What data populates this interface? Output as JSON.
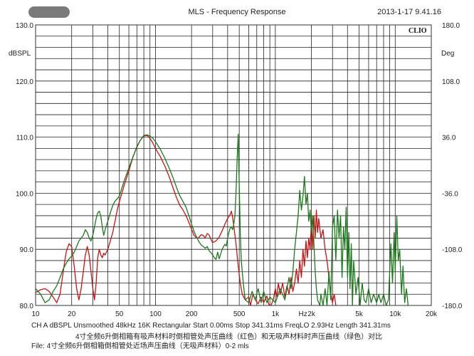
{
  "window": {
    "title": "MLS - Frequency Response",
    "timestamp": "2013-1-17 9.41.16"
  },
  "chart_data": {
    "type": "line",
    "brand": "CLIO",
    "y_unit_left": "dBSPL",
    "y_unit_right": "Deg",
    "x_scale": "log",
    "xlim": [
      10,
      20000
    ],
    "ylim": [
      80,
      130
    ],
    "ylim_right": [
      -180,
      180
    ],
    "grid": true,
    "x_ticks": [
      {
        "v": 10,
        "label": "10"
      },
      {
        "v": 20,
        "label": "20"
      },
      {
        "v": 50,
        "label": "50"
      },
      {
        "v": 100,
        "label": "100"
      },
      {
        "v": 200,
        "label": "200"
      },
      {
        "v": 500,
        "label": "500"
      },
      {
        "v": 1000,
        "label": "1k"
      },
      {
        "v": 1700,
        "label": "Hz"
      },
      {
        "v": 2000,
        "label": "2k"
      },
      {
        "v": 5000,
        "label": "5k"
      },
      {
        "v": 10000,
        "label": "10k"
      },
      {
        "v": 20000,
        "label": "20k"
      }
    ],
    "x_gridlines": [
      10,
      20,
      30,
      40,
      50,
      60,
      70,
      80,
      90,
      100,
      200,
      300,
      400,
      500,
      600,
      700,
      800,
      900,
      1000,
      2000,
      3000,
      4000,
      5000,
      6000,
      7000,
      8000,
      9000,
      10000,
      20000
    ],
    "y_ticks_left": [
      "130.0",
      "120.0",
      "110.0",
      "100.0",
      "90.0",
      "80.0"
    ],
    "y_ticks_left_values": [
      130,
      120,
      110,
      100,
      90,
      80
    ],
    "y_ticks_right": [
      "180.0",
      "108.0",
      "36.0",
      "-36.0",
      "-108.0",
      "-180.0"
    ],
    "y_ticks_right_values": [
      180,
      108,
      36,
      -36,
      -108,
      -180
    ],
    "series": [
      {
        "color": "#cc1111",
        "points": [
          [
            10,
            82.3
          ],
          [
            11,
            82.8
          ],
          [
            12,
            83
          ],
          [
            13,
            82.5
          ],
          [
            14,
            81.5
          ],
          [
            15,
            80.5
          ],
          [
            16,
            82
          ],
          [
            17,
            86
          ],
          [
            18,
            89.5
          ],
          [
            19,
            91
          ],
          [
            20,
            90.5
          ],
          [
            21,
            87
          ],
          [
            22,
            83
          ],
          [
            23,
            81
          ],
          [
            24,
            83
          ],
          [
            25,
            86
          ],
          [
            26,
            89
          ],
          [
            27,
            90.5
          ],
          [
            28,
            89
          ],
          [
            29,
            86
          ],
          [
            30,
            83
          ],
          [
            31,
            81
          ],
          [
            32,
            84
          ],
          [
            33,
            88.5
          ],
          [
            34,
            90
          ],
          [
            35,
            89
          ],
          [
            36,
            88.5
          ],
          [
            37,
            89.3
          ],
          [
            38,
            89
          ],
          [
            40,
            90
          ],
          [
            42,
            91.5
          ],
          [
            44,
            93
          ],
          [
            46,
            95
          ],
          [
            48,
            97
          ],
          [
            50,
            98.5
          ],
          [
            55,
            101.5
          ],
          [
            60,
            104
          ],
          [
            65,
            106.5
          ],
          [
            70,
            108.3
          ],
          [
            75,
            109.5
          ],
          [
            80,
            110.2
          ],
          [
            85,
            110.3
          ],
          [
            90,
            109.8
          ],
          [
            95,
            109
          ],
          [
            100,
            108
          ],
          [
            110,
            106.5
          ],
          [
            120,
            104.8
          ],
          [
            130,
            103
          ],
          [
            140,
            101
          ],
          [
            150,
            99.2
          ],
          [
            160,
            97.8
          ],
          [
            170,
            97
          ],
          [
            180,
            96
          ],
          [
            190,
            94.8
          ],
          [
            200,
            93.6
          ],
          [
            210,
            92.5
          ],
          [
            220,
            92
          ],
          [
            230,
            92.1
          ],
          [
            240,
            92.6
          ],
          [
            250,
            92.5
          ],
          [
            260,
            92
          ],
          [
            270,
            92.8
          ],
          [
            280,
            92.6
          ],
          [
            290,
            91.8
          ],
          [
            300,
            91.2
          ],
          [
            320,
            91.5
          ],
          [
            340,
            92.2
          ],
          [
            360,
            93.3
          ],
          [
            380,
            94.5
          ],
          [
            400,
            95.5
          ],
          [
            420,
            96.2
          ],
          [
            430,
            96.8
          ],
          [
            440,
            95.8
          ],
          [
            450,
            94.2
          ],
          [
            470,
            91
          ],
          [
            490,
            87
          ],
          [
            510,
            84
          ],
          [
            530,
            82
          ],
          [
            560,
            81
          ],
          [
            600,
            81.5
          ],
          [
            620,
            80
          ],
          [
            650,
            82
          ],
          [
            680,
            81
          ],
          [
            720,
            80.3
          ],
          [
            760,
            81.5
          ],
          [
            800,
            80.5
          ],
          [
            850,
            81.7
          ],
          [
            880,
            80.2
          ],
          [
            920,
            80
          ],
          [
            960,
            81
          ],
          [
            1000,
            83
          ],
          [
            1030,
            81.5
          ],
          [
            1060,
            84
          ],
          [
            1100,
            82
          ],
          [
            1150,
            84
          ],
          [
            1200,
            81.5
          ],
          [
            1250,
            83.5
          ],
          [
            1300,
            82
          ],
          [
            1350,
            85
          ],
          [
            1400,
            82.5
          ],
          [
            1450,
            84
          ],
          [
            1500,
            86.5
          ],
          [
            1550,
            84
          ],
          [
            1600,
            88
          ],
          [
            1650,
            85
          ],
          [
            1700,
            90
          ],
          [
            1750,
            87
          ],
          [
            1800,
            91.5
          ],
          [
            1850,
            88.5
          ],
          [
            1900,
            92
          ],
          [
            1950,
            90
          ],
          [
            2000,
            95
          ],
          [
            2050,
            90
          ],
          [
            2100,
            96
          ],
          [
            2150,
            92
          ],
          [
            2200,
            97
          ],
          [
            2250,
            93
          ],
          [
            2300,
            95.5
          ],
          [
            2400,
            92
          ],
          [
            2500,
            93.5
          ],
          [
            2600,
            90
          ],
          [
            2700,
            88
          ],
          [
            2800,
            85
          ],
          [
            2900,
            82
          ],
          [
            3000,
            80.5
          ],
          [
            3100,
            82
          ],
          [
            3200,
            80
          ]
        ]
      },
      {
        "color": "#1a7a1a",
        "points": [
          [
            10,
            83
          ],
          [
            11,
            82
          ],
          [
            12,
            80.5
          ],
          [
            13,
            81
          ],
          [
            14,
            82.5
          ],
          [
            15,
            83.5
          ],
          [
            16,
            85
          ],
          [
            17,
            86.5
          ],
          [
            18,
            87.5
          ],
          [
            19,
            88.3
          ],
          [
            20,
            88.8
          ],
          [
            21,
            89.5
          ],
          [
            22,
            90.5
          ],
          [
            23,
            91.5
          ],
          [
            24,
            92
          ],
          [
            25,
            92.5
          ],
          [
            26,
            93.5
          ],
          [
            27,
            93
          ],
          [
            28,
            92
          ],
          [
            29,
            91.5
          ],
          [
            30,
            92.5
          ],
          [
            31,
            94
          ],
          [
            32,
            95.5
          ],
          [
            33,
            96.5
          ],
          [
            34,
            96.8
          ],
          [
            35,
            96
          ],
          [
            36,
            94
          ],
          [
            37,
            92.5
          ],
          [
            38,
            93.5
          ],
          [
            40,
            95
          ],
          [
            42,
            96.5
          ],
          [
            44,
            97.8
          ],
          [
            46,
            98.6
          ],
          [
            48,
            99
          ],
          [
            50,
            99.5
          ],
          [
            55,
            102.3
          ],
          [
            60,
            104.5
          ],
          [
            65,
            106.5
          ],
          [
            70,
            108.2
          ],
          [
            75,
            109.5
          ],
          [
            80,
            110.3
          ],
          [
            85,
            110.4
          ],
          [
            90,
            110.2
          ],
          [
            95,
            109.8
          ],
          [
            100,
            109.2
          ],
          [
            110,
            107.8
          ],
          [
            120,
            106.2
          ],
          [
            130,
            104.5
          ],
          [
            140,
            102.8
          ],
          [
            150,
            101
          ],
          [
            160,
            99.5
          ],
          [
            170,
            98.5
          ],
          [
            180,
            97.5
          ],
          [
            190,
            96
          ],
          [
            200,
            94.5
          ],
          [
            210,
            93.2
          ],
          [
            220,
            92.2
          ],
          [
            230,
            91.4
          ],
          [
            240,
            90.8
          ],
          [
            250,
            90.5
          ],
          [
            260,
            90.2
          ],
          [
            270,
            90.5
          ],
          [
            280,
            89.8
          ],
          [
            290,
            89.4
          ],
          [
            300,
            89
          ],
          [
            310,
            88.5
          ],
          [
            320,
            88.2
          ],
          [
            330,
            89.5
          ],
          [
            340,
            88.3
          ],
          [
            350,
            89.2
          ],
          [
            360,
            90
          ],
          [
            370,
            90.5
          ],
          [
            380,
            90.9
          ],
          [
            390,
            90.6
          ],
          [
            400,
            92
          ],
          [
            410,
            93
          ],
          [
            420,
            93.8
          ],
          [
            430,
            94
          ],
          [
            440,
            93.5
          ],
          [
            450,
            94.5
          ],
          [
            460,
            96
          ],
          [
            470,
            100
          ],
          [
            480,
            106
          ],
          [
            490,
            110.5
          ],
          [
            500,
            101
          ],
          [
            510,
            93
          ],
          [
            520,
            88
          ],
          [
            540,
            84
          ],
          [
            560,
            81
          ],
          [
            600,
            80.5
          ],
          [
            640,
            82.5
          ],
          [
            680,
            81
          ],
          [
            720,
            83
          ],
          [
            760,
            80.5
          ],
          [
            800,
            82.5
          ],
          [
            850,
            80.5
          ],
          [
            900,
            81.5
          ],
          [
            1000,
            80.5
          ],
          [
            1100,
            83
          ],
          [
            1200,
            81
          ],
          [
            1300,
            85
          ],
          [
            1350,
            83
          ],
          [
            1400,
            86
          ],
          [
            1450,
            90
          ],
          [
            1500,
            93
          ],
          [
            1550,
            96
          ],
          [
            1600,
            100.5
          ],
          [
            1650,
            97
          ],
          [
            1700,
            99.5
          ],
          [
            1750,
            103
          ],
          [
            1800,
            98
          ],
          [
            1850,
            100
          ],
          [
            1900,
            95
          ],
          [
            1950,
            97
          ],
          [
            2000,
            93
          ],
          [
            2050,
            96
          ],
          [
            2100,
            91
          ],
          [
            2150,
            86
          ],
          [
            2200,
            83
          ],
          [
            2250,
            81
          ],
          [
            2300,
            80.5
          ],
          [
            2350,
            80
          ],
          [
            2400,
            82
          ],
          [
            2500,
            80
          ],
          [
            2600,
            83
          ],
          [
            2700,
            80
          ],
          [
            2800,
            86
          ],
          [
            2900,
            81
          ],
          [
            3000,
            94
          ],
          [
            3100,
            96
          ],
          [
            3200,
            88
          ],
          [
            3300,
            97
          ],
          [
            3400,
            92
          ],
          [
            3500,
            96
          ],
          [
            3600,
            85
          ],
          [
            3700,
            94
          ],
          [
            3800,
            90
          ],
          [
            3900,
            97.5
          ],
          [
            4000,
            85
          ],
          [
            4100,
            93
          ],
          [
            4200,
            83
          ],
          [
            4300,
            91
          ],
          [
            4400,
            80
          ],
          [
            4500,
            88
          ],
          [
            4700,
            82
          ],
          [
            4900,
            85
          ],
          [
            5100,
            80
          ],
          [
            5300,
            84
          ],
          [
            5500,
            81
          ],
          [
            5700,
            80.5
          ],
          [
            6000,
            83
          ],
          [
            6300,
            80.5
          ],
          [
            6600,
            82
          ],
          [
            7000,
            80.5
          ],
          [
            7300,
            82
          ],
          [
            7600,
            80.5
          ],
          [
            8000,
            82
          ],
          [
            8400,
            80
          ],
          [
            8800,
            81
          ],
          [
            9200,
            91
          ],
          [
            9500,
            84
          ],
          [
            9800,
            93
          ],
          [
            10000,
            86
          ],
          [
            10300,
            96
          ],
          [
            10600,
            88
          ],
          [
            10900,
            90
          ],
          [
            11300,
            82
          ],
          [
            11600,
            87
          ],
          [
            12000,
            80.5
          ],
          [
            12400,
            83
          ],
          [
            12800,
            80
          ]
        ]
      }
    ]
  },
  "footer": {
    "line1": "CH A   dBSPL   Unsmoothed   48kHz   16K   Rectangular   Start 0.00ms    Stop 341.31ms    FreqLO 2.93Hz    Length 341.31ms",
    "line2": "4寸全频6升倒相箱有吸声材料时倒相管处声压曲线（红色）和无吸声材料时声压曲线（绿色）对比",
    "line3": "File: 4寸全频6升倒相箱倒相管处近场声压曲线（无吸声材料）0-2 mls"
  }
}
